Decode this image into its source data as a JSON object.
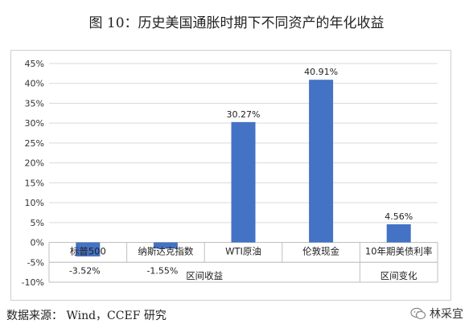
{
  "figure_title": "图 10：历史美国通胀时期下不同资产的年化收益",
  "source": "数据来源： Wind，CCEF 研究",
  "watermark": "林采宜",
  "colors": {
    "bar": "#4472C4",
    "grid": "#d9d9d9",
    "axis": "#bfbfbf"
  },
  "chart_data": {
    "type": "bar",
    "title": "",
    "xlabel": "",
    "ylabel": "",
    "ylim": [
      -10,
      45
    ],
    "yticks": [
      -10,
      -5,
      0,
      5,
      10,
      15,
      20,
      25,
      30,
      35,
      40,
      45
    ],
    "ytick_labels": [
      "-10%",
      "-5%",
      "0%",
      "5%",
      "10%",
      "15%",
      "20%",
      "25%",
      "30%",
      "35%",
      "40%",
      "45%"
    ],
    "categories": [
      "标普500",
      "纳斯达克指数",
      "WTI原油",
      "伦敦现金",
      "10年期美债利率"
    ],
    "values": [
      -3.52,
      -1.55,
      30.27,
      40.91,
      4.56
    ],
    "data_labels": [
      "-3.52%",
      "-1.55%",
      "30.27%",
      "40.91%",
      "4.56%"
    ],
    "groups": [
      {
        "label": "区间收益",
        "span": 4
      },
      {
        "label": "区间变化",
        "span": 1
      }
    ],
    "grid": true,
    "legend": "none"
  }
}
